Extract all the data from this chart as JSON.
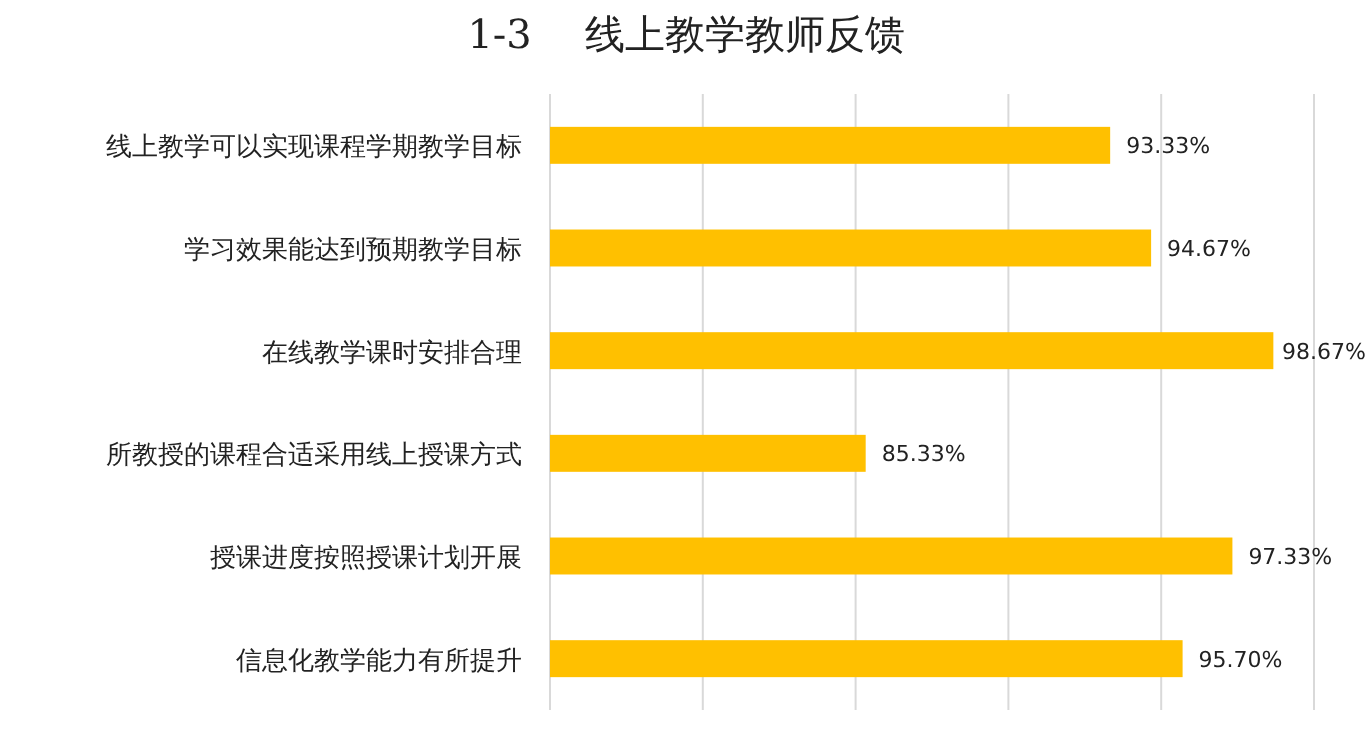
{
  "chart_data": {
    "type": "bar",
    "orientation": "horizontal",
    "title": "1-3　 线上教学教师反馈",
    "categories": [
      "线上教学可以实现课程学期教学目标",
      "学习效果能达到预期教学目标",
      "在线教学课时安排合理",
      "所教授的课程合适采用线上授课方式",
      "授课进度按照授课计划开展",
      "信息化教学能力有所提升"
    ],
    "values": [
      93.33,
      94.67,
      98.67,
      85.33,
      97.33,
      95.7
    ],
    "value_labels": [
      "93.33%",
      "94.67%",
      "98.67%",
      "85.33%",
      "97.33%",
      "95.70%"
    ],
    "color": "#ffc000",
    "xlim": [
      75,
      100
    ],
    "xticks": [
      {
        "value": 75,
        "label": null
      },
      {
        "value": 80,
        "label": null
      },
      {
        "value": 85,
        "label": null
      },
      {
        "value": 90,
        "label": null
      },
      {
        "value": 95,
        "label": null
      },
      {
        "value": 100,
        "label": null
      }
    ],
    "grid": "x"
  }
}
